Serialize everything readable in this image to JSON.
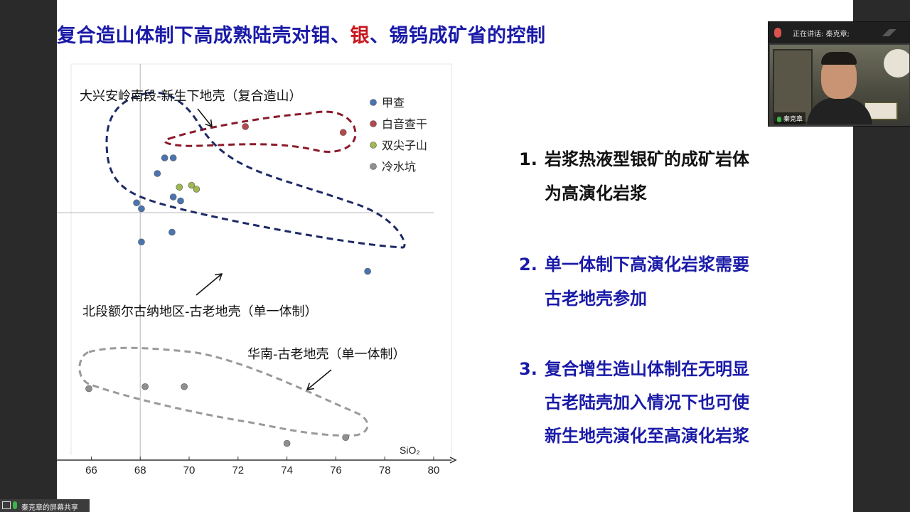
{
  "slide": {
    "title_parts": [
      "复合造山体制下高成熟陆壳对钼、",
      "银",
      "、锡钨成矿省的控制"
    ],
    "points": [
      {
        "num": "1.",
        "line1": "岩浆热液型银矿的成矿岩体",
        "line2": "为高演化岩浆"
      },
      {
        "num": "2.",
        "line1": "单一体制下高演化岩浆需要",
        "line2": "古老地壳参加"
      },
      {
        "num": "3.",
        "line1": "复合增生造山体制在无明显",
        "line2": "古老陆壳加入情况下也可使",
        "line3": "新生地壳演化至高演化岩浆"
      }
    ]
  },
  "chart_data": {
    "type": "scatter",
    "xlabel": "SiO₂",
    "ylabel": "",
    "x_ticks": [
      66,
      68,
      70,
      72,
      74,
      76,
      78,
      80
    ],
    "xlim": [
      65.9,
      80
    ],
    "series": [
      {
        "name": "甲查",
        "color": "#4a74b0",
        "points": [
          [
            68.7,
            1.9
          ],
          [
            69.0,
            2.3
          ],
          [
            69.35,
            2.3
          ],
          [
            67.85,
            1.15
          ],
          [
            68.05,
            1.0
          ],
          [
            69.35,
            1.3
          ],
          [
            69.65,
            1.2
          ],
          [
            68.05,
            0.15
          ],
          [
            69.3,
            0.4
          ],
          [
            77.3,
            -0.6
          ]
        ]
      },
      {
        "name": "白音查干",
        "color": "#b5484d",
        "points": [
          [
            72.3,
            3.1
          ],
          [
            76.3,
            2.95
          ]
        ]
      },
      {
        "name": "双尖子山",
        "color": "#9fb851",
        "points": [
          [
            69.6,
            1.55
          ],
          [
            70.1,
            1.6
          ],
          [
            70.3,
            1.5
          ]
        ]
      },
      {
        "name": "冷水坑",
        "color": "#8f8f8f",
        "points": [
          [
            65.9,
            -3.6
          ],
          [
            68.2,
            -3.55
          ],
          [
            69.8,
            -3.55
          ],
          [
            74.0,
            -5.0
          ],
          [
            76.4,
            -4.85
          ]
        ]
      }
    ],
    "annotations": [
      "大兴安岭南段-新生下地壳（复合造山）",
      "北段额尔古纳地区-古老地壳（单一体制）",
      "华南-古老地壳（单一体制）"
    ],
    "legend_position": "top-right",
    "grid": false,
    "reference_lines": {
      "x": 68,
      "y": 0.9
    }
  },
  "video": {
    "speaker_label": "正在讲话: 秦克章;",
    "participant_name": "秦克章"
  },
  "share_bar": {
    "label": "秦克章的屏幕共享"
  },
  "colors": {
    "title_blue": "#1a1aa8",
    "highlight_red": "#c8161d",
    "outline_red": "#8b1a2a",
    "outline_navy": "#1c2a66",
    "outline_gray": "#9a9a9a"
  }
}
